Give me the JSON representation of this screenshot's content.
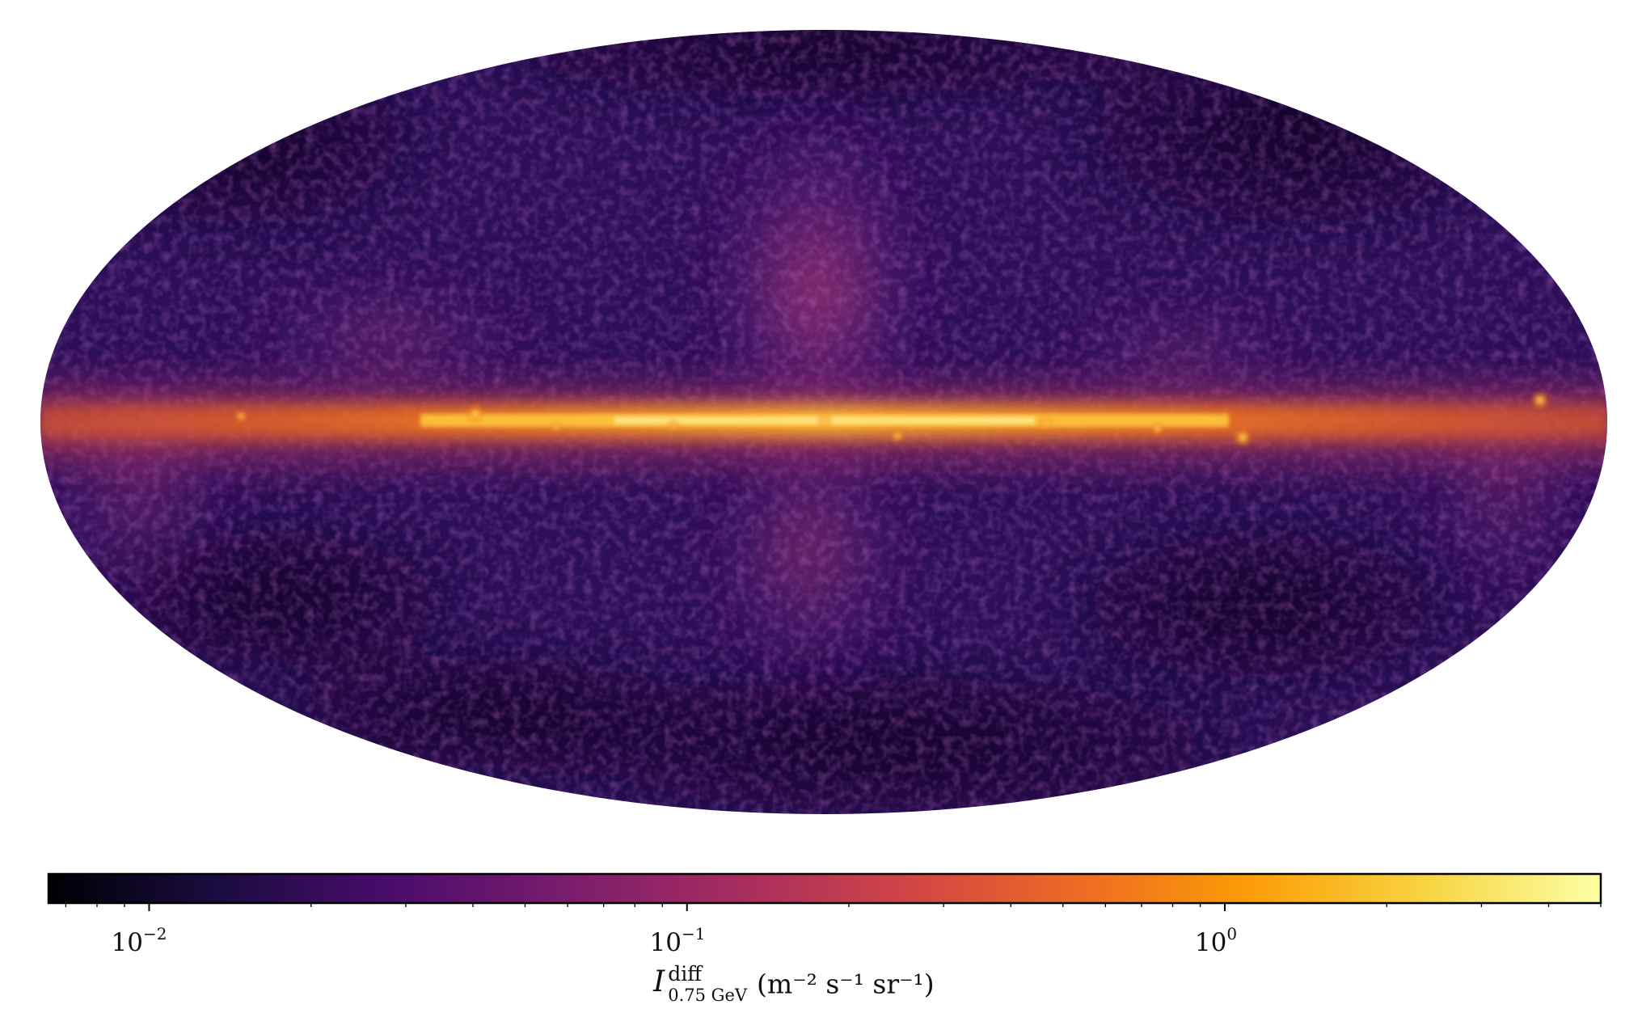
{
  "map": {
    "projection": "Mollweide",
    "colormap": "inferno",
    "scale": "log"
  },
  "colorbar": {
    "scale": "log",
    "range": [
      0.0065,
      5.0
    ],
    "ticks": [
      {
        "value": 0.01,
        "base": "10",
        "exponent": "−2"
      },
      {
        "value": 0.1,
        "base": "10",
        "exponent": "−1"
      },
      {
        "value": 1.0,
        "base": "10",
        "exponent": "0"
      }
    ],
    "label": {
      "symbol": "I",
      "superscript": "diff",
      "subscript": "0.75 GeV",
      "units": "(m⁻² s⁻¹ sr⁻¹)"
    },
    "colors": [
      "#000004",
      "#1b0c41",
      "#4a0c6b",
      "#781c6d",
      "#a52c60",
      "#cf4446",
      "#ed6925",
      "#fb9b06",
      "#f7d13d",
      "#fcffa4"
    ]
  }
}
